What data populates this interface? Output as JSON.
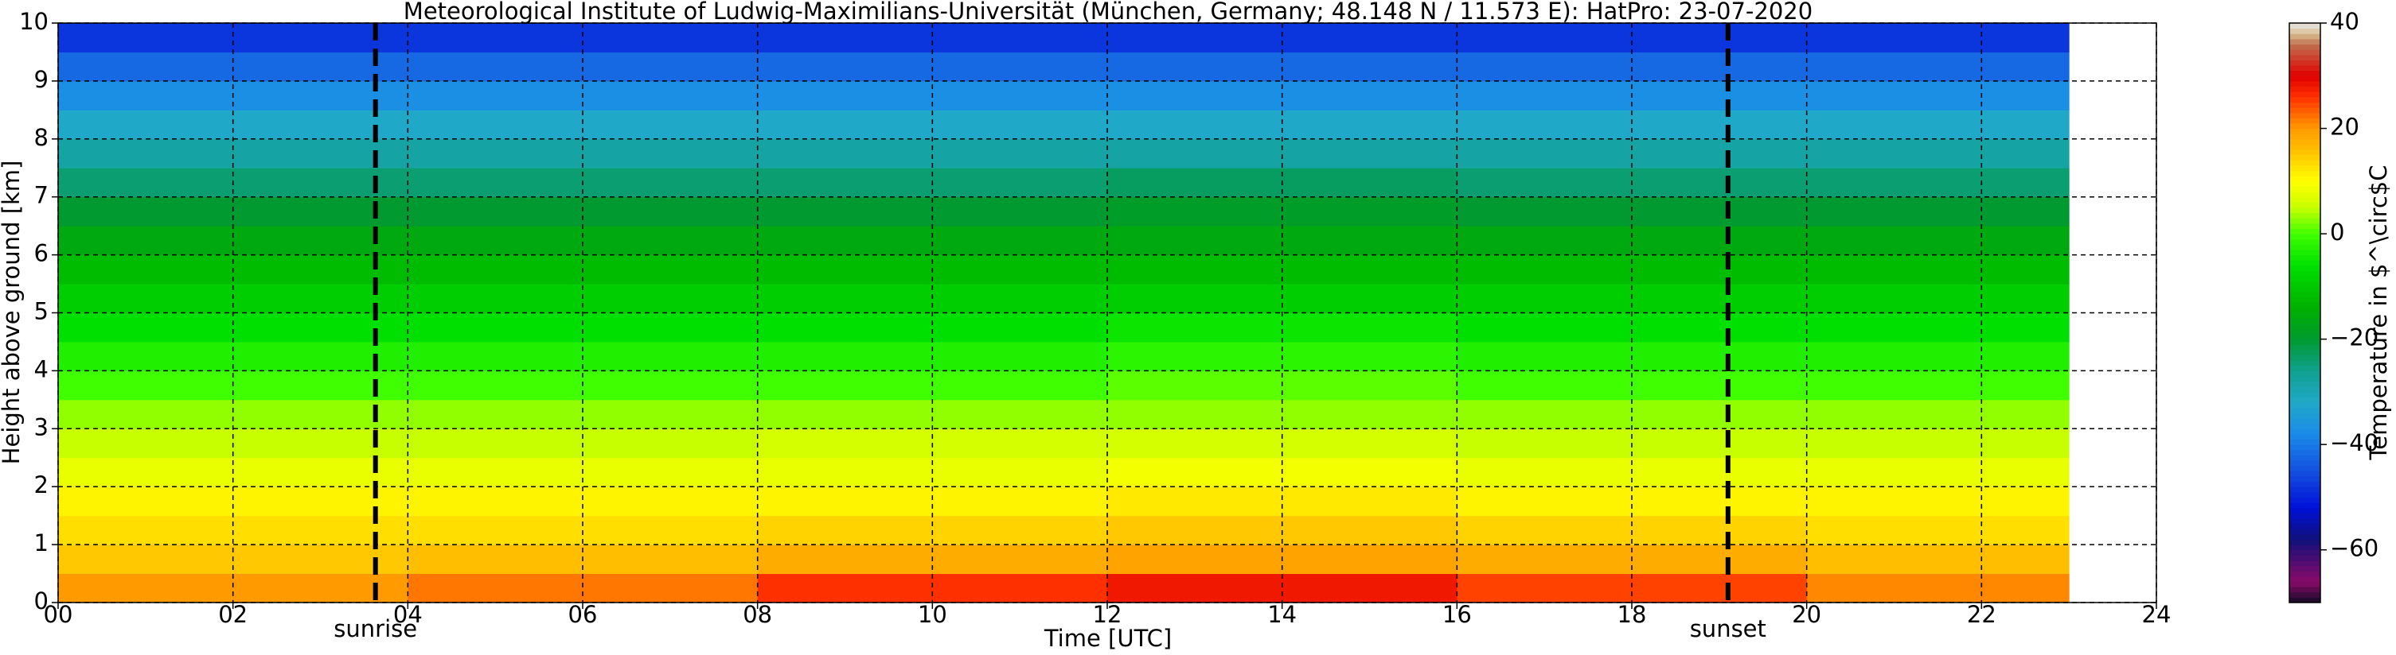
{
  "chart_data": {
    "type": "heatmap",
    "title": "Meteorological Institute of Ludwig-Maximilians-Universität (München, Germany; 48.148 N / 11.573 E):    HatPro: 23-07-2020",
    "x_label": "Time [UTC]",
    "y_label": "Height above ground [km]",
    "colorbar_label": "Temperature in $^\\circ$C",
    "xlim": [
      0,
      24
    ],
    "xticks": [
      {
        "value": 0,
        "label": "00"
      },
      {
        "value": 2,
        "label": "02"
      },
      {
        "value": 4,
        "label": "04"
      },
      {
        "value": 6,
        "label": "06"
      },
      {
        "value": 8,
        "label": "08"
      },
      10,
      12,
      14,
      16,
      18,
      20,
      22,
      24
    ],
    "ylim": [
      0,
      10
    ],
    "yticks": [
      0,
      1,
      2,
      3,
      4,
      5,
      6,
      7,
      8,
      9,
      10
    ],
    "clim": [
      -70,
      40
    ],
    "cticks": [
      {
        "value": -60,
        "label": "−60"
      },
      {
        "value": -40,
        "label": "−40"
      },
      {
        "value": -20,
        "label": "−20"
      },
      0,
      20,
      40
    ],
    "grid": true,
    "x_edges": [
      0,
      4,
      8,
      12,
      16,
      20,
      23
    ],
    "y_edges": [
      0,
      0.5,
      1,
      1.5,
      2,
      2.5,
      3,
      3.5,
      4,
      4.5,
      5,
      5.5,
      6,
      6.5,
      7,
      7.5,
      8,
      8.5,
      9,
      9.5,
      10
    ],
    "values": [
      [
        20,
        22,
        26,
        28,
        25,
        21
      ],
      [
        15,
        16,
        18,
        19,
        18,
        16
      ],
      [
        13,
        13,
        14,
        15,
        14,
        13
      ],
      [
        11,
        11,
        11,
        12,
        11,
        11
      ],
      [
        8,
        8,
        8,
        9,
        8,
        8
      ],
      [
        5,
        5,
        6,
        6,
        5,
        5
      ],
      [
        3,
        3,
        3,
        3,
        3,
        3
      ],
      [
        0,
        0,
        0,
        1,
        0,
        0
      ],
      [
        -3,
        -3,
        -3,
        -2,
        -3,
        -3
      ],
      [
        -6,
        -6,
        -6,
        -5,
        -6,
        -6
      ],
      [
        -9,
        -9,
        -9,
        -9,
        -9,
        -9
      ],
      [
        -12,
        -12,
        -12,
        -12,
        -12,
        -12
      ],
      [
        -16,
        -16,
        -16,
        -16,
        -16,
        -16
      ],
      [
        -20,
        -20,
        -20,
        -19,
        -20,
        -20
      ],
      [
        -24,
        -24,
        -24,
        -23,
        -24,
        -24
      ],
      [
        -28,
        -28,
        -28,
        -28,
        -28,
        -28
      ],
      [
        -32,
        -32,
        -32,
        -32,
        -32,
        -32
      ],
      [
        -37,
        -37,
        -37,
        -37,
        -37,
        -37
      ],
      [
        -42,
        -42,
        -42,
        -42,
        -42,
        -42
      ],
      [
        -48,
        -48,
        -48,
        -48,
        -48,
        -48
      ]
    ],
    "colormap": [
      {
        "value": -70,
        "color": "#120a24"
      },
      {
        "value": -66,
        "color": "#8a0a6a"
      },
      {
        "value": -58,
        "color": "#10107a"
      },
      {
        "value": -52,
        "color": "#0010d8"
      },
      {
        "value": -45,
        "color": "#1450e0"
      },
      {
        "value": -38,
        "color": "#1a8ae8"
      },
      {
        "value": -32,
        "color": "#20a8c8"
      },
      {
        "value": -26,
        "color": "#10a090"
      },
      {
        "value": -20,
        "color": "#009a30"
      },
      {
        "value": -14,
        "color": "#00b000"
      },
      {
        "value": -6,
        "color": "#00e000"
      },
      {
        "value": 0,
        "color": "#40ff00"
      },
      {
        "value": 5,
        "color": "#c8ff00"
      },
      {
        "value": 10,
        "color": "#ffff00"
      },
      {
        "value": 15,
        "color": "#ffc800"
      },
      {
        "value": 20,
        "color": "#ff9a00"
      },
      {
        "value": 26,
        "color": "#ff3000"
      },
      {
        "value": 30,
        "color": "#e00000"
      },
      {
        "value": 36,
        "color": "#c07050"
      },
      {
        "value": 38,
        "color": "#d8c090"
      },
      {
        "value": 40,
        "color": "#e8e8e8"
      }
    ],
    "vlines": [
      {
        "x": 3.63,
        "label": "sunrise"
      },
      {
        "x": 19.1,
        "label": "sunset"
      }
    ]
  }
}
